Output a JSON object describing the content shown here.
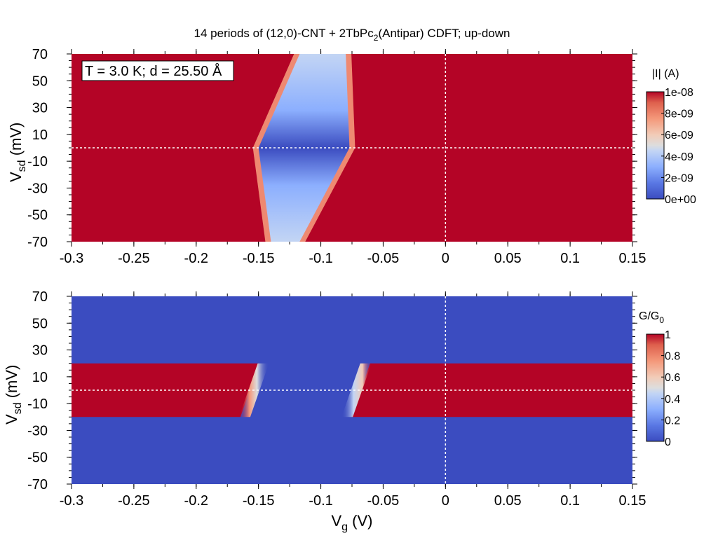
{
  "title_parts": [
    "14 periods of (12,0)-CNT + 2TbPc",
    "2",
    "(Antipar) CDFT; up-down"
  ],
  "annotation": "T = 3.0 K; d = 25.50 Å",
  "colors": {
    "map_low": "#3b4cc0",
    "map_mid": "#dddddd",
    "map_high": "#b40426",
    "guide_line": "#ffffff",
    "text": "#000000"
  },
  "chart_data": [
    {
      "type": "heatmap",
      "quantity": "current magnitude",
      "xlabel": "",
      "ylabel_parts": [
        "V",
        "sd",
        " (mV)"
      ],
      "xlim": [
        -0.3,
        0.15
      ],
      "ylim": [
        -70,
        70
      ],
      "xticks": [
        -0.3,
        -0.25,
        -0.2,
        -0.15,
        -0.1,
        -0.05,
        0,
        0.05,
        0.1,
        0.15
      ],
      "xtick_labels": [
        "-0.3",
        "-0.25",
        "-0.2",
        "-0.15",
        "-0.1",
        "-0.05",
        "0",
        "0.05",
        "0.1",
        "0.15"
      ],
      "yticks": [
        -70,
        -50,
        -30,
        -10,
        10,
        30,
        50,
        70
      ],
      "ytick_labels": [
        "-70",
        "-50",
        "-30",
        "-10",
        "10",
        "30",
        "50",
        "70"
      ],
      "colorbar": {
        "label": "|I| (A)",
        "min": 0,
        "max": 1e-08,
        "ticks": [
          0,
          2e-09,
          4e-09,
          6e-09,
          8e-09,
          1e-08
        ],
        "tick_labels": [
          "0e+00",
          "2e-09",
          "4e-09",
          "6e-09",
          "8e-09",
          "1e-08"
        ]
      },
      "guide_lines": {
        "x": 0,
        "y": 0
      },
      "blockade_region": {
        "vertex_left": [
          -0.15,
          0
        ],
        "vertex_right": [
          -0.077,
          0
        ],
        "top_edge_vsd": 70,
        "top_edge_vg": [
          -0.117,
          -0.08
        ],
        "bottom_edge_vsd": -70,
        "bottom_edge_vg": [
          -0.14,
          -0.117
        ],
        "value_inside": 0,
        "value_outside": 1e-08
      }
    },
    {
      "type": "heatmap",
      "quantity": "differential conductance",
      "xlabel_parts": [
        "V",
        "g",
        "  (V)"
      ],
      "ylabel_parts": [
        "V",
        "sd",
        " (mV)"
      ],
      "xlim": [
        -0.3,
        0.15
      ],
      "ylim": [
        -70,
        70
      ],
      "xticks": [
        -0.3,
        -0.25,
        -0.2,
        -0.15,
        -0.1,
        -0.05,
        0,
        0.05,
        0.1,
        0.15
      ],
      "xtick_labels": [
        "-0.3",
        "-0.25",
        "-0.2",
        "-0.15",
        "-0.1",
        "-0.05",
        "0",
        "0.05",
        "0.1",
        "0.15"
      ],
      "yticks": [
        -70,
        -50,
        -30,
        -10,
        10,
        30,
        50,
        70
      ],
      "ytick_labels": [
        "-70",
        "-50",
        "-30",
        "-10",
        "10",
        "30",
        "50",
        "70"
      ],
      "colorbar": {
        "label_parts": [
          "G/G",
          "0"
        ],
        "min": 0,
        "max": 1,
        "ticks": [
          0,
          0.2,
          0.4,
          0.6,
          0.8,
          1
        ],
        "tick_labels": [
          "0",
          "0.2",
          "0.4",
          "0.6",
          "0.8",
          "1"
        ]
      },
      "guide_lines": {
        "x": 0,
        "y": 0
      },
      "conducting_band": {
        "vsd_range": [
          -20,
          20
        ],
        "left_edge_vg_at_top": -0.145,
        "left_edge_vg_at_bottom": -0.16,
        "right_edge_vg_at_top": -0.065,
        "right_edge_vg_at_bottom": -0.08,
        "value_inside": 1,
        "value_outside": 0
      }
    }
  ]
}
